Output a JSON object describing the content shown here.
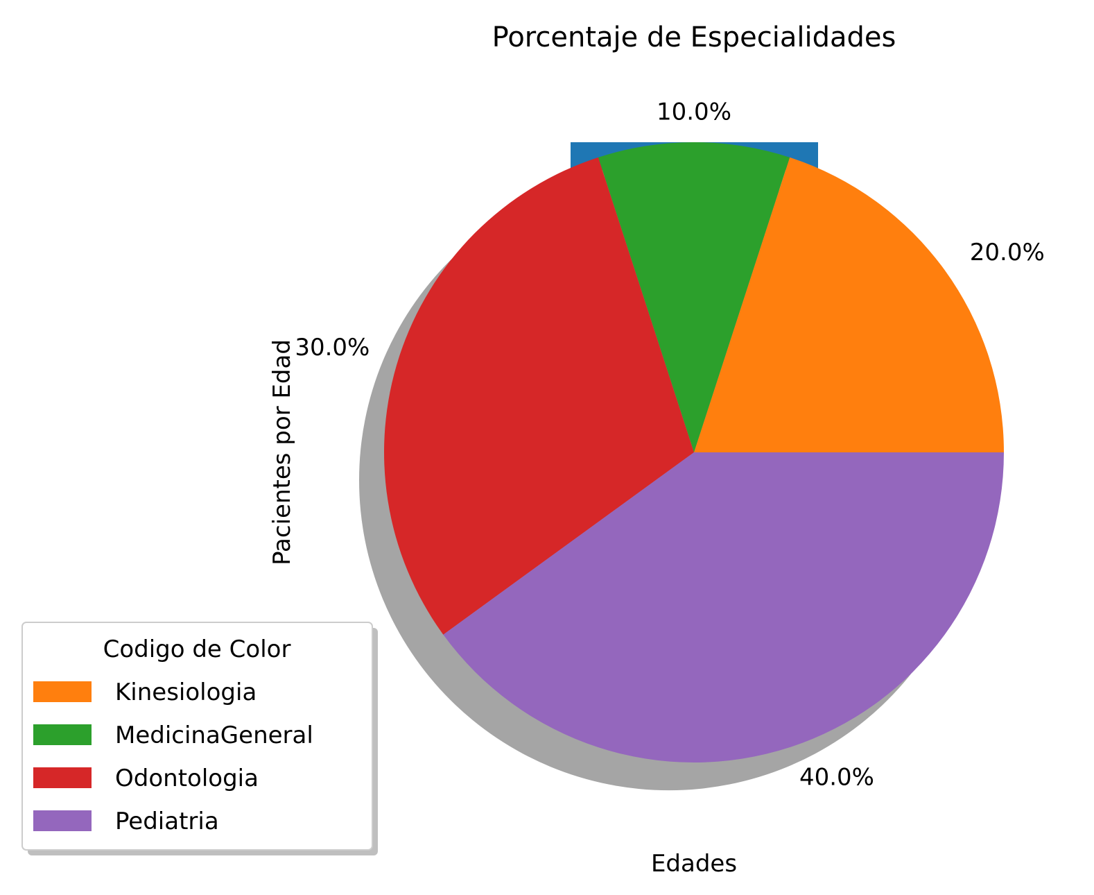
{
  "chart_data": {
    "type": "pie",
    "title": "Porcentaje de Especialidades",
    "xlabel": "Edades",
    "ylabel": "Pacientes por Edad",
    "shadow": true,
    "slices": [
      {
        "label": "Kinesiologia",
        "value": 20.0,
        "label_text": "20.0%",
        "color": "#ff7f0e"
      },
      {
        "label": "MedicinaGeneral",
        "value": 10.0,
        "label_text": "10.0%",
        "color": "#2ca02c"
      },
      {
        "label": "Odontologia",
        "value": 30.0,
        "label_text": "30.0%",
        "color": "#d62728"
      },
      {
        "label": "Pediatria",
        "value": 40.0,
        "label_text": "40.0%",
        "color": "#9467bd"
      }
    ],
    "legend": {
      "title": "Codigo de Color",
      "placement": "lower-left",
      "entries": [
        "Kinesiologia",
        "MedicinaGeneral",
        "Odontologia",
        "Pediatria"
      ]
    },
    "background_patch_color": "#1f77b4"
  }
}
